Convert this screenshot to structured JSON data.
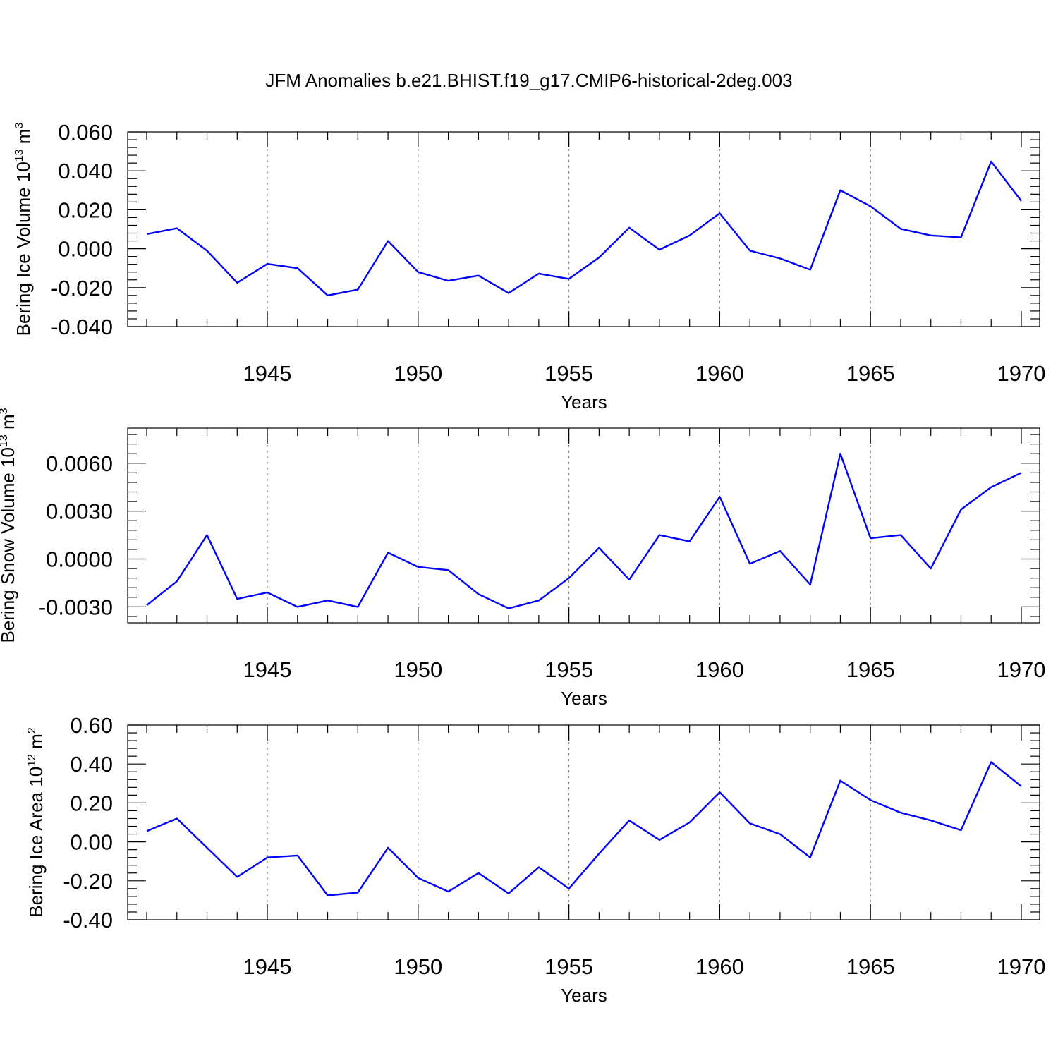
{
  "title": "JFM Anomalies b.e21.BHIST.f19_g17.CMIP6-historical-2deg.003",
  "line_color": "#0000ff",
  "chart_data": [
    {
      "type": "line",
      "xlabel": "Years",
      "ylabel_text": "Bering Ice Volume 10",
      "ylabel_exp": "13",
      "ylabel_unit": " m",
      "ylabel_unit_exp": "3",
      "xlim": [
        1941,
        1970
      ],
      "ylim": [
        -0.04,
        0.06
      ],
      "xticks": [
        "1945",
        "1950",
        "1955",
        "1960",
        "1965",
        "1970"
      ],
      "xtick_values": [
        1945,
        1950,
        1955,
        1960,
        1965,
        1970
      ],
      "yticks": [
        "0.060",
        "0.040",
        "0.020",
        "0.000",
        "-0.020",
        "-0.040"
      ],
      "ytick_values": [
        0.06,
        0.04,
        0.02,
        0.0,
        -0.02,
        -0.04
      ],
      "grid": "dotted vertical at labeled years",
      "x": [
        1941,
        1942,
        1943,
        1944,
        1945,
        1946,
        1947,
        1948,
        1949,
        1950,
        1951,
        1952,
        1953,
        1954,
        1955,
        1956,
        1957,
        1958,
        1959,
        1960,
        1961,
        1962,
        1963,
        1964,
        1965,
        1966,
        1967,
        1968,
        1969,
        1970
      ],
      "values": [
        0.0075,
        0.0105,
        -0.001,
        -0.0175,
        -0.0078,
        -0.01,
        -0.024,
        -0.021,
        0.004,
        -0.012,
        -0.0165,
        -0.0138,
        -0.0228,
        -0.0128,
        -0.0155,
        -0.0045,
        0.0108,
        -0.0005,
        0.0068,
        0.0182,
        -0.001,
        -0.005,
        -0.0108,
        0.03,
        0.0218,
        0.0102,
        0.0068,
        0.0058,
        0.0448,
        0.0245
      ]
    },
    {
      "type": "line",
      "xlabel": "Years",
      "ylabel_text": "Bering Snow Volume 10",
      "ylabel_exp": "13",
      "ylabel_unit": " m",
      "ylabel_unit_exp": "3",
      "xlim": [
        1941,
        1970
      ],
      "ylim": [
        -0.004,
        0.0082
      ],
      "xticks": [
        "1945",
        "1950",
        "1955",
        "1960",
        "1965",
        "1970"
      ],
      "xtick_values": [
        1945,
        1950,
        1955,
        1960,
        1965,
        1970
      ],
      "yticks": [
        "0.0060",
        "0.0030",
        "0.0000",
        "-0.0030"
      ],
      "ytick_values": [
        0.006,
        0.003,
        0.0,
        -0.003
      ],
      "grid": "dotted vertical at labeled years",
      "x": [
        1941,
        1942,
        1943,
        1944,
        1945,
        1946,
        1947,
        1948,
        1949,
        1950,
        1951,
        1952,
        1953,
        1954,
        1955,
        1956,
        1957,
        1958,
        1959,
        1960,
        1961,
        1962,
        1963,
        1964,
        1965,
        1966,
        1967,
        1968,
        1969,
        1970
      ],
      "values": [
        -0.0029,
        -0.0014,
        0.0015,
        -0.0025,
        -0.0021,
        -0.003,
        -0.0026,
        -0.003,
        0.0004,
        -0.0005,
        -0.0007,
        -0.0022,
        -0.0031,
        -0.0026,
        -0.0012,
        0.0007,
        -0.0013,
        0.0015,
        0.0011,
        0.0039,
        -0.0003,
        0.0005,
        -0.0016,
        0.0066,
        0.0013,
        0.0015,
        -0.0006,
        0.0031,
        0.0045,
        0.0054
      ]
    },
    {
      "type": "line",
      "xlabel": "Years",
      "ylabel_text": "Bering Ice Area 10",
      "ylabel_exp": "12",
      "ylabel_unit": " m",
      "ylabel_unit_exp": "2",
      "xlim": [
        1941,
        1970
      ],
      "ylim": [
        -0.4,
        0.6
      ],
      "xticks": [
        "1945",
        "1950",
        "1955",
        "1960",
        "1965",
        "1970"
      ],
      "xtick_values": [
        1945,
        1950,
        1955,
        1960,
        1965,
        1970
      ],
      "yticks": [
        "0.60",
        "0.40",
        "0.20",
        "0.00",
        "-0.20",
        "-0.40"
      ],
      "ytick_values": [
        0.6,
        0.4,
        0.2,
        0.0,
        -0.2,
        -0.4
      ],
      "grid": "dotted vertical at labeled years",
      "x": [
        1941,
        1942,
        1943,
        1944,
        1945,
        1946,
        1947,
        1948,
        1949,
        1950,
        1951,
        1952,
        1953,
        1954,
        1955,
        1956,
        1957,
        1958,
        1959,
        1960,
        1961,
        1962,
        1963,
        1964,
        1965,
        1966,
        1967,
        1968,
        1969,
        1970
      ],
      "values": [
        0.055,
        0.12,
        -0.03,
        -0.18,
        -0.08,
        -0.07,
        -0.275,
        -0.26,
        -0.03,
        -0.185,
        -0.255,
        -0.16,
        -0.265,
        -0.13,
        -0.24,
        -0.06,
        0.11,
        0.01,
        0.1,
        0.255,
        0.095,
        0.04,
        -0.08,
        0.315,
        0.215,
        0.15,
        0.11,
        0.06,
        0.41,
        0.285
      ]
    }
  ]
}
